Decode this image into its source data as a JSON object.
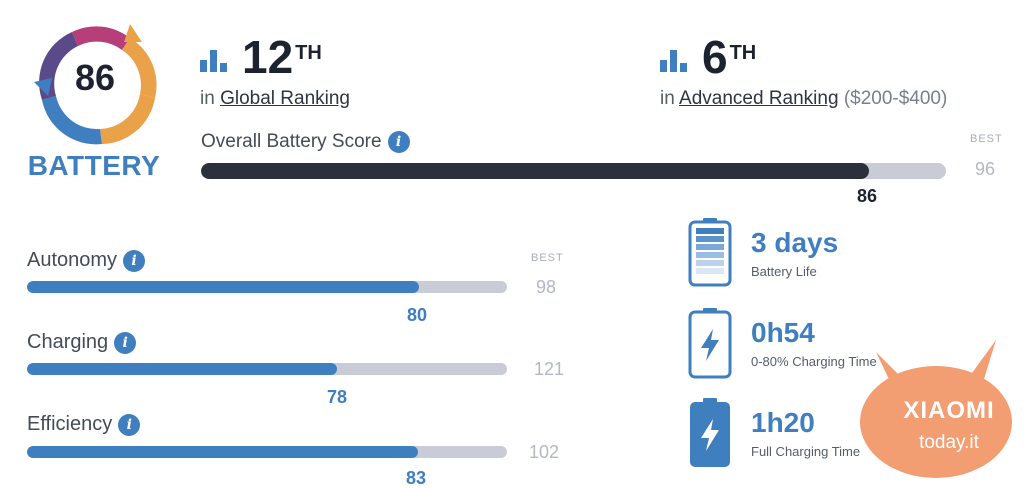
{
  "badge": {
    "score": "86",
    "label": "BATTERY"
  },
  "global_rank": {
    "number": "12",
    "suffix": "TH",
    "prefix": "in",
    "link": "Global Ranking"
  },
  "advanced_rank": {
    "number": "6",
    "suffix": "TH",
    "prefix": "in",
    "link": "Advanced Ranking",
    "range": "($200-$400)"
  },
  "overall": {
    "label": "Overall Battery Score",
    "best_label": "BEST",
    "best": "96",
    "value": "86",
    "fraction": 0.896
  },
  "metrics": [
    {
      "label": "Autonomy",
      "best_label": "BEST",
      "best": "98",
      "value": "80",
      "fraction": 0.816
    },
    {
      "label": "Charging",
      "best": "121",
      "value": "78",
      "fraction": 0.645
    },
    {
      "label": "Efficiency",
      "best": "102",
      "value": "83",
      "fraction": 0.814
    }
  ],
  "stats": [
    {
      "value": "3 days",
      "caption": "Battery Life",
      "icon": "battery-levels-icon"
    },
    {
      "value": "0h54",
      "caption": "0-80% Charging Time",
      "icon": "battery-charging-outline-icon"
    },
    {
      "value": "1h20",
      "caption": "Full Charging Time",
      "icon": "battery-charging-filled-icon"
    }
  ],
  "info_glyph": "i",
  "watermark": {
    "brand": "XIAOMI",
    "site": "today.it"
  },
  "colors": {
    "accent": "#3f7fbf",
    "dark_bar": "#2b303c",
    "track": "#c9ccd6",
    "watermark": "#f08c5a"
  }
}
